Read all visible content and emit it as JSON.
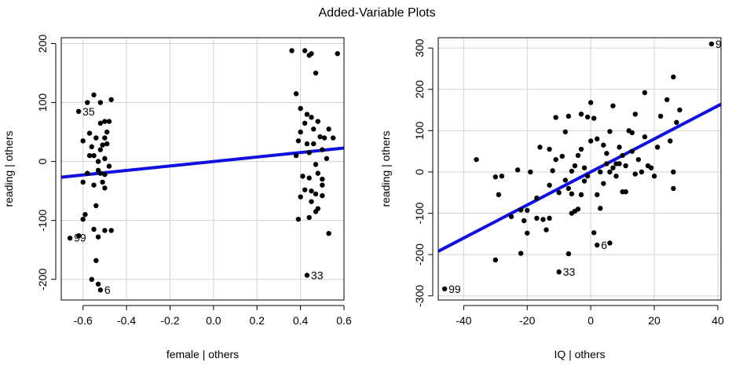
{
  "title": "Added-Variable Plots",
  "colors": {
    "points": "#000000",
    "fit_line": "#1010e0",
    "grid": "#d3d3d3",
    "frame": "#000000"
  },
  "chart_data": [
    {
      "type": "scatter",
      "xlabel": "female | others",
      "ylabel": "reading | others",
      "xlim": [
        -0.7,
        0.6
      ],
      "ylim": [
        -235,
        210
      ],
      "xticks": [
        -0.6,
        -0.4,
        -0.2,
        0.0,
        0.2,
        0.4,
        0.6
      ],
      "xtick_labels": [
        "-0.6",
        "-0.4",
        "-0.2",
        "0.0",
        "0.2",
        "0.4",
        "0.6"
      ],
      "yticks": [
        -200,
        -100,
        0,
        100,
        200
      ],
      "ytick_labels": [
        "-200",
        "-100",
        "0",
        "100",
        "200"
      ],
      "grid": true,
      "fit_line": {
        "slope": 38,
        "intercept": 0
      },
      "labels": [
        {
          "text": "35",
          "x": -0.62,
          "y": 85
        },
        {
          "text": "99",
          "x": -0.66,
          "y": -129
        },
        {
          "text": "6",
          "x": -0.52,
          "y": -218
        },
        {
          "text": "33",
          "x": 0.43,
          "y": -193
        }
      ],
      "points": [
        [
          -0.62,
          85
        ],
        [
          -0.58,
          100
        ],
        [
          -0.55,
          113
        ],
        [
          -0.5,
          68
        ],
        [
          -0.47,
          105
        ],
        [
          -0.6,
          35
        ],
        [
          -0.56,
          25
        ],
        [
          -0.53,
          0
        ],
        [
          -0.52,
          -20
        ],
        [
          -0.51,
          -35
        ],
        [
          -0.58,
          -20
        ],
        [
          -0.6,
          -35
        ],
        [
          -0.59,
          -90
        ],
        [
          -0.6,
          -98
        ],
        [
          -0.55,
          -115
        ],
        [
          -0.53,
          -128
        ],
        [
          -0.5,
          -117
        ],
        [
          -0.47,
          -117
        ],
        [
          -0.66,
          -130
        ],
        [
          -0.62,
          -126
        ],
        [
          -0.54,
          -168
        ],
        [
          -0.56,
          -200
        ],
        [
          -0.53,
          -208
        ],
        [
          -0.52,
          -218
        ],
        [
          -0.48,
          -8
        ],
        [
          -0.5,
          40
        ],
        [
          -0.49,
          30
        ],
        [
          -0.5,
          5
        ],
        [
          -0.51,
          28
        ],
        [
          -0.54,
          40
        ],
        [
          -0.57,
          48
        ],
        [
          -0.55,
          10
        ],
        [
          -0.53,
          -15
        ],
        [
          -0.5,
          -22
        ],
        [
          -0.54,
          -75
        ],
        [
          -0.49,
          50
        ],
        [
          -0.48,
          68
        ],
        [
          -0.52,
          65
        ],
        [
          -0.55,
          -40
        ],
        [
          -0.5,
          -45
        ],
        [
          -0.52,
          20
        ],
        [
          -0.57,
          10
        ],
        [
          -0.52,
          100
        ],
        [
          0.36,
          188
        ],
        [
          0.42,
          188
        ],
        [
          0.44,
          180
        ],
        [
          0.45,
          183
        ],
        [
          0.57,
          183
        ],
        [
          0.47,
          150
        ],
        [
          0.38,
          115
        ],
        [
          0.4,
          90
        ],
        [
          0.43,
          80
        ],
        [
          0.45,
          75
        ],
        [
          0.42,
          65
        ],
        [
          0.48,
          68
        ],
        [
          0.4,
          50
        ],
        [
          0.39,
          35
        ],
        [
          0.43,
          30
        ],
        [
          0.46,
          30
        ],
        [
          0.51,
          40
        ],
        [
          0.53,
          55
        ],
        [
          0.44,
          15
        ],
        [
          0.5,
          20
        ],
        [
          0.52,
          5
        ],
        [
          0.47,
          -5
        ],
        [
          0.41,
          -25
        ],
        [
          0.44,
          -28
        ],
        [
          0.48,
          -20
        ],
        [
          0.5,
          -30
        ],
        [
          0.42,
          -48
        ],
        [
          0.45,
          -50
        ],
        [
          0.4,
          -60
        ],
        [
          0.47,
          -55
        ],
        [
          0.5,
          -58
        ],
        [
          0.45,
          -68
        ],
        [
          0.48,
          -80
        ],
        [
          0.44,
          -95
        ],
        [
          0.39,
          -98
        ],
        [
          0.53,
          -122
        ],
        [
          0.43,
          -193
        ],
        [
          0.47,
          -85
        ],
        [
          0.5,
          -40
        ],
        [
          0.55,
          40
        ],
        [
          0.38,
          10
        ],
        [
          0.46,
          55
        ],
        [
          0.49,
          42
        ]
      ]
    },
    {
      "type": "scatter",
      "xlabel": "IQ | others",
      "ylabel": "reading | others",
      "xlim": [
        -48,
        41
      ],
      "ylim": [
        -310,
        325
      ],
      "xticks": [
        -40,
        -20,
        0,
        20,
        40
      ],
      "xtick_labels": [
        "-40",
        "-20",
        "0",
        "20",
        "40"
      ],
      "yticks": [
        -300,
        -200,
        -100,
        0,
        100,
        200,
        300
      ],
      "ytick_labels": [
        "-300",
        "-200",
        "-100",
        "0",
        "100",
        "200",
        "300"
      ],
      "grid": true,
      "fit_line": {
        "slope": 4.0,
        "intercept": 0
      },
      "labels": [
        {
          "text": "9",
          "x": 38,
          "y": 310
        },
        {
          "text": "99",
          "x": -46,
          "y": -283
        },
        {
          "text": "6",
          "x": 2,
          "y": -177
        },
        {
          "text": "33",
          "x": -10,
          "y": -242
        }
      ],
      "points": [
        [
          38,
          310
        ],
        [
          -46,
          -283
        ],
        [
          -10,
          -242
        ],
        [
          2,
          -177
        ],
        [
          6,
          -172
        ],
        [
          -7,
          -198
        ],
        [
          -30,
          -213
        ],
        [
          -22,
          -197
        ],
        [
          -36,
          30
        ],
        [
          -30,
          -12
        ],
        [
          -29,
          -55
        ],
        [
          -22,
          -92
        ],
        [
          -20,
          -93
        ],
        [
          -21,
          -118
        ],
        [
          -17,
          -112
        ],
        [
          -20,
          -148
        ],
        [
          -17,
          -63
        ],
        [
          -15,
          -115
        ],
        [
          -13,
          -112
        ],
        [
          -13,
          -32
        ],
        [
          -16,
          60
        ],
        [
          -13,
          55
        ],
        [
          -11,
          132
        ],
        [
          -11,
          30
        ],
        [
          -9,
          38
        ],
        [
          -8,
          97
        ],
        [
          -7,
          -40
        ],
        [
          -6,
          -53
        ],
        [
          -5,
          -95
        ],
        [
          -4,
          -90
        ],
        [
          -3,
          -55
        ],
        [
          -5,
          15
        ],
        [
          -4,
          40
        ],
        [
          -3,
          140
        ],
        [
          -1,
          133
        ],
        [
          0,
          168
        ],
        [
          1,
          130
        ],
        [
          1,
          -147
        ],
        [
          2,
          -55
        ],
        [
          3,
          -88
        ],
        [
          4,
          65
        ],
        [
          5,
          45
        ],
        [
          5,
          20
        ],
        [
          6,
          0
        ],
        [
          7,
          10
        ],
        [
          8,
          20
        ],
        [
          9,
          20
        ],
        [
          10,
          40
        ],
        [
          11,
          15
        ],
        [
          12,
          100
        ],
        [
          13,
          95
        ],
        [
          14,
          -5
        ],
        [
          10,
          -48
        ],
        [
          11,
          -48
        ],
        [
          15,
          30
        ],
        [
          16,
          0
        ],
        [
          17,
          192
        ],
        [
          18,
          15
        ],
        [
          19,
          10
        ],
        [
          20,
          -10
        ],
        [
          22,
          135
        ],
        [
          24,
          175
        ],
        [
          25,
          75
        ],
        [
          26,
          230
        ],
        [
          27,
          120
        ],
        [
          26,
          0
        ],
        [
          26,
          -40
        ],
        [
          28,
          150
        ],
        [
          7,
          160
        ],
        [
          -2,
          10
        ],
        [
          3,
          0
        ],
        [
          -1,
          -10
        ],
        [
          -6,
          -100
        ],
        [
          -2,
          -22
        ],
        [
          4,
          -28
        ],
        [
          8,
          -10
        ],
        [
          -10,
          -50
        ],
        [
          -14,
          -140
        ],
        [
          -25,
          -108
        ],
        [
          -19,
          0
        ],
        [
          -23,
          5
        ],
        [
          -28,
          -10
        ],
        [
          -8,
          -20
        ],
        [
          -12,
          3
        ],
        [
          -6,
          2
        ],
        [
          -3,
          55
        ],
        [
          0,
          75
        ],
        [
          2,
          80
        ],
        [
          9,
          60
        ],
        [
          13,
          50
        ],
        [
          17,
          85
        ],
        [
          21,
          60
        ],
        [
          6,
          98
        ],
        [
          -7,
          135
        ],
        [
          14,
          140
        ]
      ]
    }
  ]
}
